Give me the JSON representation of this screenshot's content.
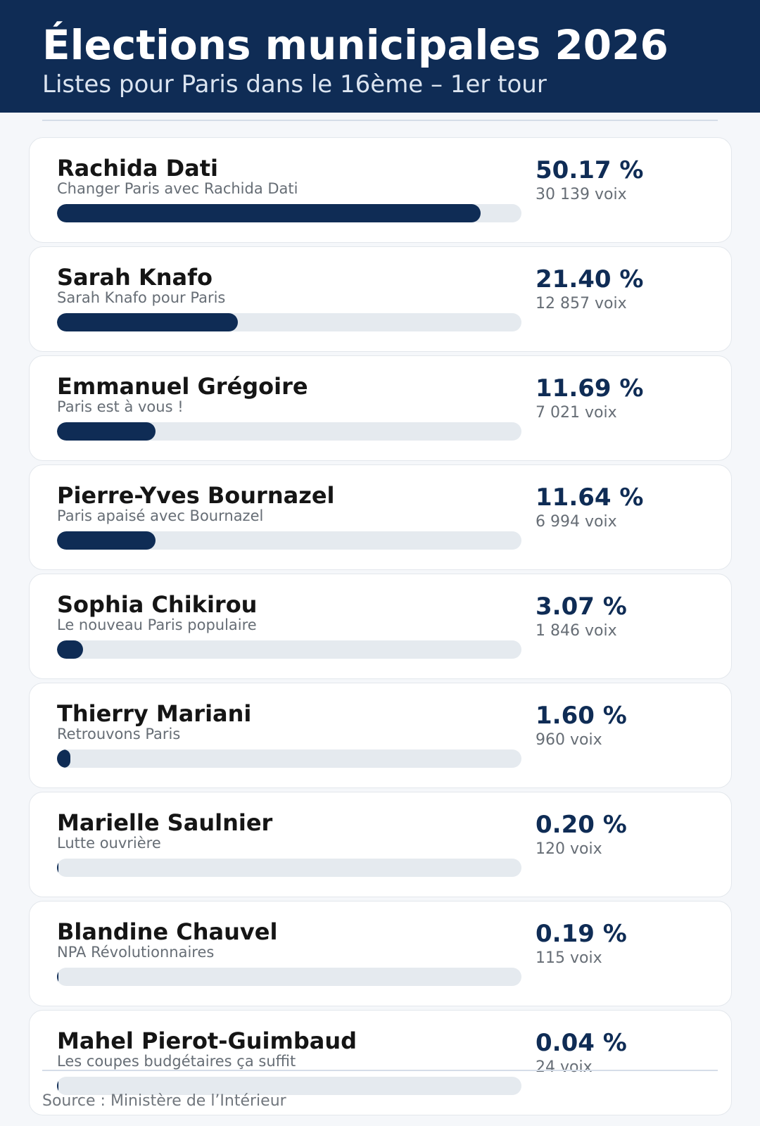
{
  "header": {
    "title": "Élections municipales 2026",
    "subtitle": "Listes pour Paris dans le 16ème – 1er tour"
  },
  "colors": {
    "header_bg": "#0f2c55",
    "bar_fill": "#0f2c55",
    "bar_track": "#e5eaef"
  },
  "chart_data": {
    "type": "bar",
    "orientation": "horizontal",
    "unit": "%",
    "candidates": [
      {
        "name": "Rachida Dati",
        "list": "Changer Paris avec Rachida Dati",
        "pct": 50.17,
        "pct_label": "50.17 %",
        "votes_label": "30 139 voix"
      },
      {
        "name": "Sarah Knafo",
        "list": "Sarah Knafo pour Paris",
        "pct": 21.4,
        "pct_label": "21.40 %",
        "votes_label": "12 857 voix"
      },
      {
        "name": "Emmanuel Grégoire",
        "list": "Paris est à vous !",
        "pct": 11.69,
        "pct_label": "11.69 %",
        "votes_label": "7 021 voix"
      },
      {
        "name": "Pierre-Yves Bournazel",
        "list": "Paris apaisé avec Bournazel",
        "pct": 11.64,
        "pct_label": "11.64 %",
        "votes_label": "6 994 voix"
      },
      {
        "name": "Sophia Chikirou",
        "list": "Le nouveau Paris populaire",
        "pct": 3.07,
        "pct_label": "3.07 %",
        "votes_label": "1 846 voix"
      },
      {
        "name": "Thierry Mariani",
        "list": "Retrouvons Paris",
        "pct": 1.6,
        "pct_label": "1.60 %",
        "votes_label": "960 voix"
      },
      {
        "name": "Marielle Saulnier",
        "list": "Lutte ouvrière",
        "pct": 0.2,
        "pct_label": "0.20 %",
        "votes_label": "120 voix"
      },
      {
        "name": "Blandine Chauvel",
        "list": "NPA Révolutionnaires",
        "pct": 0.19,
        "pct_label": "0.19 %",
        "votes_label": "115 voix"
      },
      {
        "name": "Mahel Pierot-Guimbaud",
        "list": "Les coupes budgétaires ça suffit",
        "pct": 0.04,
        "pct_label": "0.04 %",
        "votes_label": "24 voix"
      }
    ],
    "xlim": [
      0,
      55
    ]
  },
  "footer": {
    "source": "Source : Ministère de l’Intérieur"
  }
}
